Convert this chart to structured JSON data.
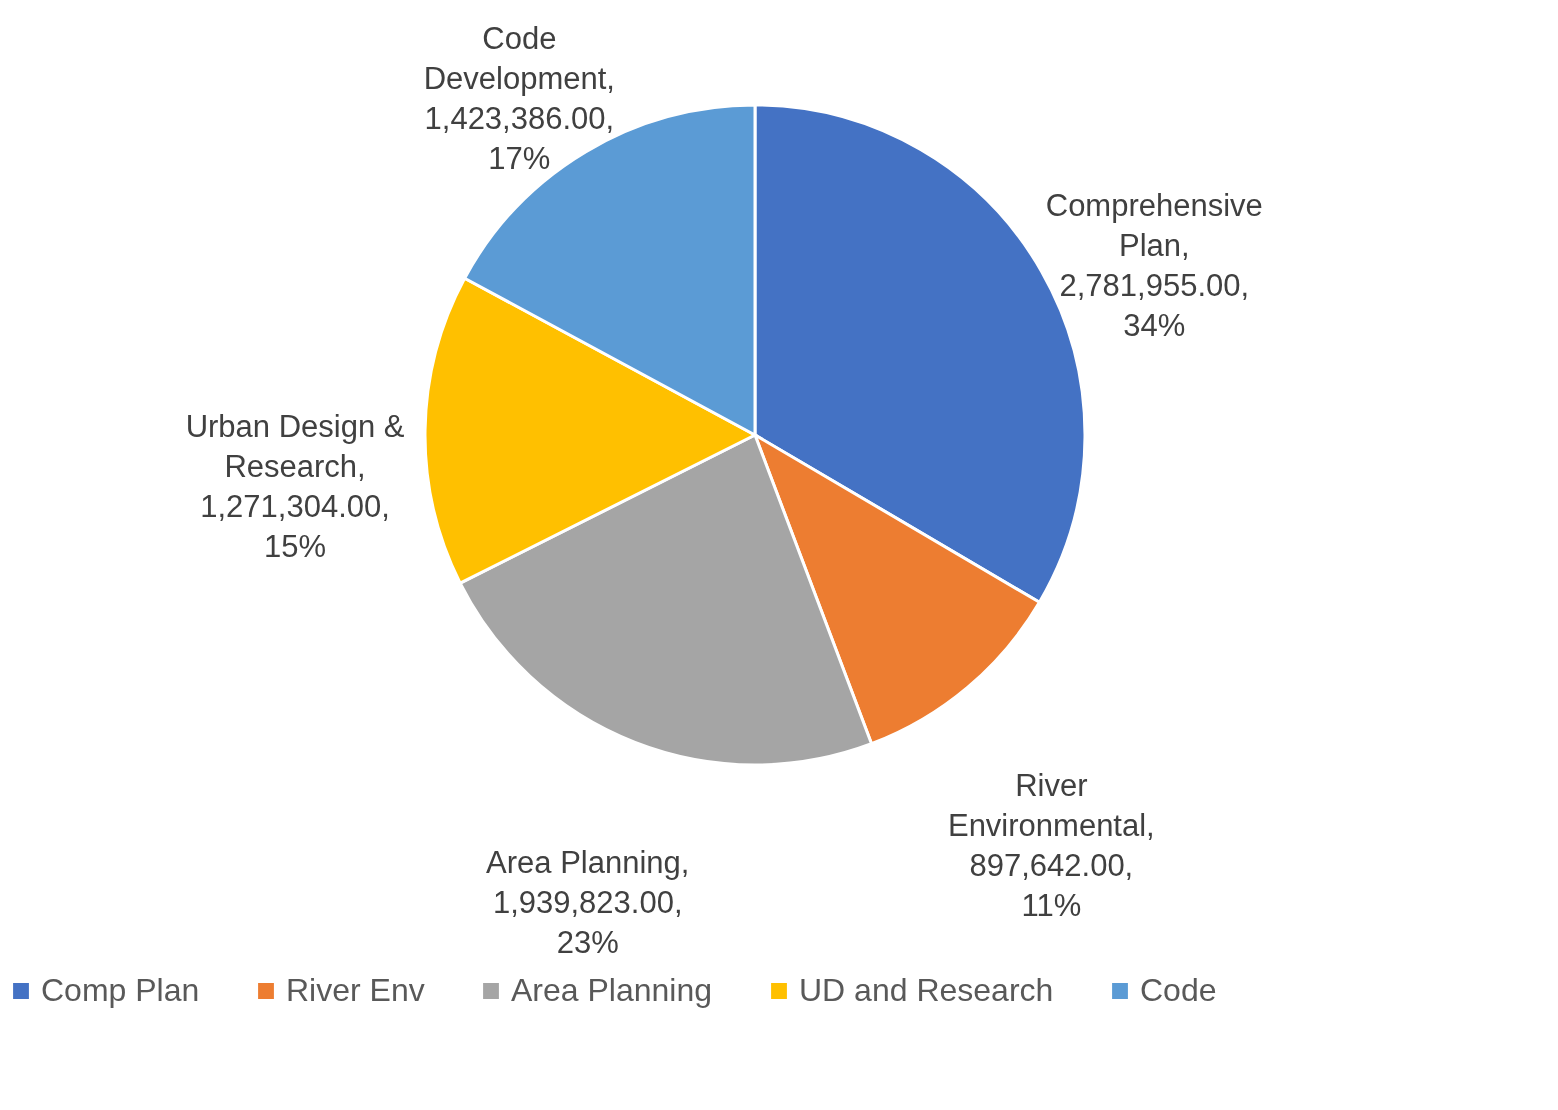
{
  "chart_data": {
    "type": "pie",
    "categories": [
      "Comp Plan",
      "River Env",
      "Area Planning",
      "UD and Research",
      "Code"
    ],
    "values": [
      2781955,
      897642,
      1939823,
      1271304,
      1423386
    ],
    "colors": [
      "#4472c4",
      "#ed7d31",
      "#a5a5a5",
      "#ffc000",
      "#5b9bd5"
    ],
    "value_labels": [
      "Comprehensive\nPlan,\n2,781,955.00,\n34%",
      "River\nEnvironmental,\n897,642.00,\n11%",
      "Area Planning,\n1,939,823.00,\n23%",
      "Urban Design &\nResearch,\n1,271,304.00,\n15%",
      "Code\nDevelopment,\n1,423,386.00,\n17%"
    ],
    "legend": "bottom"
  }
}
